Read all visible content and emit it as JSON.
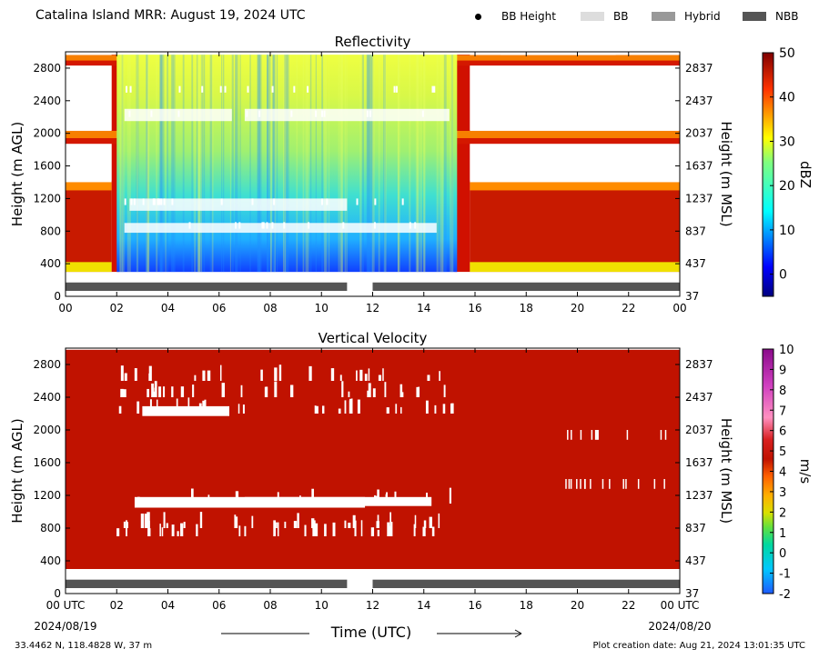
{
  "header": {
    "title": "Catalina Island MRR:  August 19, 2024 UTC",
    "legend": [
      {
        "label": "BB Height",
        "kind": "dot",
        "color": "#000000"
      },
      {
        "label": "BB",
        "kind": "box",
        "color": "#dddddd"
      },
      {
        "label": "Hybrid",
        "kind": "box",
        "color": "#999999"
      },
      {
        "label": "NBB",
        "kind": "box",
        "color": "#555555"
      }
    ]
  },
  "footer": {
    "location": "33.4462 N, 118.4828 W, 37 m",
    "created": "Plot creation date: Aug 21, 2024 13:01:35 UTC",
    "xlabel": "Time (UTC)",
    "start_date": "2024/08/19",
    "end_date": "2024/08/20"
  },
  "chart_data": [
    {
      "type": "heatmap",
      "title": "Reflectivity",
      "xlabel": "",
      "ylabel": "Height (m AGL)",
      "ylabel_right": "Height (m MSL)",
      "x_ticks": [
        "00",
        "02",
        "04",
        "06",
        "08",
        "10",
        "12",
        "14",
        "16",
        "18",
        "20",
        "22",
        "00"
      ],
      "xlim": [
        0,
        24
      ],
      "y_ticks": [
        0,
        400,
        800,
        1200,
        1600,
        2000,
        2400,
        2800
      ],
      "y_ticks_right": [
        37,
        437,
        837,
        1237,
        1637,
        2037,
        2437,
        2837
      ],
      "ylim": [
        0,
        3000
      ],
      "colorbar": {
        "label": "dBZ",
        "ticks": [
          0,
          10,
          20,
          30,
          40,
          50
        ],
        "range": [
          -5,
          50
        ]
      },
      "regions": [
        {
          "name": "rain",
          "t": [
            2.0,
            15.3
          ],
          "h": [
            300,
            3000
          ],
          "dbz_range": [
            5,
            28
          ]
        },
        {
          "name": "edge-early",
          "t": [
            1.8,
            2.1
          ],
          "h": [
            300,
            3000
          ],
          "dbz": 48
        },
        {
          "name": "edge-late",
          "t": [
            15.2,
            15.8
          ],
          "h": [
            300,
            3000
          ],
          "dbz": 48
        },
        {
          "name": "low-cloud-early",
          "t": [
            0,
            1.8
          ],
          "h": [
            300,
            1400
          ],
          "dbz": 45
        },
        {
          "name": "low-cloud-late",
          "t": [
            15.8,
            24
          ],
          "h": [
            300,
            1400
          ],
          "dbz": 45
        },
        {
          "name": "layer-2000",
          "t": [
            0,
            24
          ],
          "h": [
            1870,
            2030
          ],
          "dbz": 44
        },
        {
          "name": "layer-2900",
          "t": [
            0,
            24
          ],
          "h": [
            2830,
            2960
          ],
          "dbz": 44
        }
      ],
      "bright_band": [
        {
          "t": [
            0,
            11.0
          ],
          "class": "NBB"
        },
        {
          "t": [
            12.0,
            24
          ],
          "class": "NBB"
        }
      ]
    },
    {
      "type": "heatmap",
      "title": "Vertical Velocity",
      "xlabel": "Time (UTC)",
      "ylabel": "Height (m AGL)",
      "ylabel_right": "Height (m MSL)",
      "x_ticks": [
        "00 UTC",
        "02",
        "04",
        "06",
        "08",
        "10",
        "12",
        "14",
        "16",
        "18",
        "20",
        "22",
        "00 UTC"
      ],
      "xlim": [
        0,
        24
      ],
      "y_ticks": [
        0,
        400,
        800,
        1200,
        1600,
        2000,
        2400,
        2800
      ],
      "y_ticks_right": [
        37,
        437,
        837,
        1237,
        1637,
        2037,
        2437,
        2837
      ],
      "ylim": [
        0,
        3000
      ],
      "colorbar": {
        "label": "m/s",
        "ticks": [
          -2,
          -1,
          0,
          1,
          2,
          3,
          4,
          5,
          6,
          7,
          8,
          9,
          10
        ],
        "range": [
          -2,
          10
        ]
      },
      "value_everywhere": 6,
      "bright_band": [
        {
          "t": [
            0,
            11.0
          ],
          "class": "NBB"
        },
        {
          "t": [
            12.0,
            24
          ],
          "class": "NBB"
        }
      ]
    }
  ]
}
